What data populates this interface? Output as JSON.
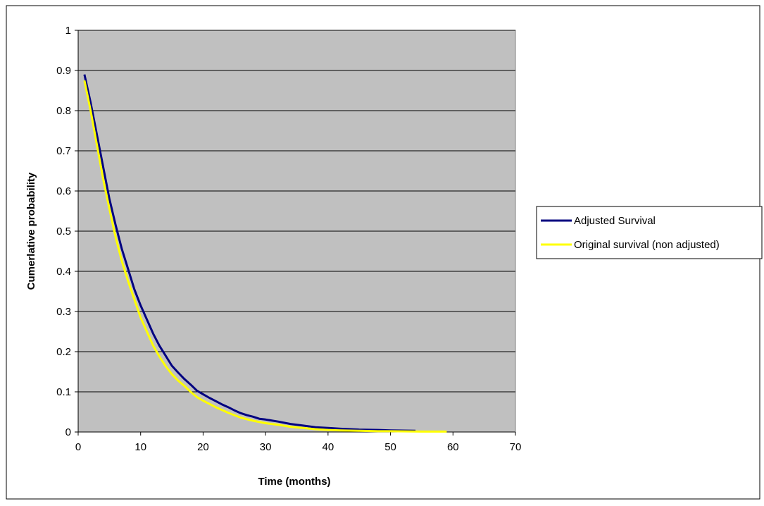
{
  "chart_data": {
    "type": "line",
    "title": "",
    "xlabel": "Time (months)",
    "ylabel": "Cumerlative probability",
    "xlim": [
      0,
      70
    ],
    "ylim": [
      0,
      1
    ],
    "x_ticks": [
      "0",
      "10",
      "20",
      "30",
      "40",
      "50",
      "60",
      "70"
    ],
    "y_ticks": [
      "0",
      "0.1",
      "0.2",
      "0.3",
      "0.4",
      "0.5",
      "0.6",
      "0.7",
      "0.8",
      "0.9",
      "1"
    ],
    "grid": "horizontal",
    "legend_position": "right",
    "series": [
      {
        "name": "Adjusted Survival",
        "color": "#000080",
        "points": [
          [
            1,
            0.89
          ],
          [
            2,
            0.82
          ],
          [
            3,
            0.74
          ],
          [
            4,
            0.66
          ],
          [
            5,
            0.58
          ],
          [
            6,
            0.515
          ],
          [
            7,
            0.455
          ],
          [
            8,
            0.405
          ],
          [
            9,
            0.355
          ],
          [
            10,
            0.315
          ],
          [
            11,
            0.28
          ],
          [
            12,
            0.245
          ],
          [
            13,
            0.215
          ],
          [
            14,
            0.19
          ],
          [
            15,
            0.165
          ],
          [
            16,
            0.148
          ],
          [
            17,
            0.132
          ],
          [
            18,
            0.118
          ],
          [
            19,
            0.103
          ],
          [
            20,
            0.094
          ],
          [
            21,
            0.085
          ],
          [
            22,
            0.077
          ],
          [
            23,
            0.069
          ],
          [
            24,
            0.062
          ],
          [
            25,
            0.054
          ],
          [
            26,
            0.047
          ],
          [
            27,
            0.042
          ],
          [
            28,
            0.038
          ],
          [
            29,
            0.033
          ],
          [
            30,
            0.031
          ],
          [
            32,
            0.026
          ],
          [
            34,
            0.02
          ],
          [
            36,
            0.016
          ],
          [
            38,
            0.012
          ],
          [
            40,
            0.01
          ],
          [
            42,
            0.008
          ],
          [
            45,
            0.006
          ],
          [
            48,
            0.005
          ],
          [
            50,
            0.004
          ],
          [
            54,
            0.003
          ]
        ]
      },
      {
        "name": "Original survival (non adjusted)",
        "color": "#FFFF00",
        "points": [
          [
            1,
            0.875
          ],
          [
            2,
            0.8
          ],
          [
            3,
            0.715
          ],
          [
            4,
            0.63
          ],
          [
            5,
            0.555
          ],
          [
            6,
            0.485
          ],
          [
            7,
            0.425
          ],
          [
            8,
            0.375
          ],
          [
            9,
            0.33
          ],
          [
            10,
            0.285
          ],
          [
            11,
            0.25
          ],
          [
            12,
            0.215
          ],
          [
            13,
            0.188
          ],
          [
            14,
            0.164
          ],
          [
            15,
            0.144
          ],
          [
            16,
            0.128
          ],
          [
            17,
            0.115
          ],
          [
            18,
            0.1
          ],
          [
            19,
            0.087
          ],
          [
            20,
            0.078
          ],
          [
            21,
            0.07
          ],
          [
            22,
            0.062
          ],
          [
            23,
            0.055
          ],
          [
            24,
            0.048
          ],
          [
            25,
            0.042
          ],
          [
            26,
            0.036
          ],
          [
            27,
            0.032
          ],
          [
            28,
            0.028
          ],
          [
            29,
            0.025
          ],
          [
            30,
            0.022
          ],
          [
            32,
            0.018
          ],
          [
            34,
            0.013
          ],
          [
            36,
            0.01
          ],
          [
            38,
            0.007
          ],
          [
            40,
            0.005
          ],
          [
            42,
            0.004
          ],
          [
            45,
            0.003
          ],
          [
            48,
            0.002
          ],
          [
            50,
            0.002
          ],
          [
            55,
            0.001
          ],
          [
            59,
            0.001
          ]
        ]
      }
    ]
  }
}
